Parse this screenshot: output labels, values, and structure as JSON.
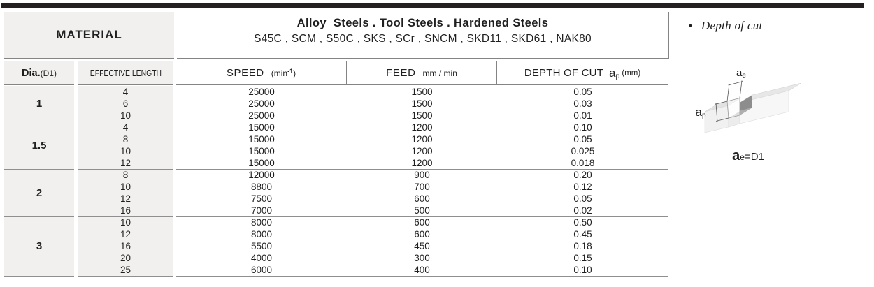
{
  "material": {
    "label": "MATERIAL",
    "title": "Alloy  Steels . Tool Steels . Hardened Steels",
    "grades": "S45C , SCM , S50C , SKS , SCr , SNCM , SKD11 , SKD61 , NAK80"
  },
  "columns": {
    "dia_label": "Dia.",
    "dia_unit": "(D1)",
    "effective_length": "EFFECTIVE LENGTH",
    "speed_label": "SPEED",
    "speed_unit_open": "(min",
    "speed_unit_sup": "-1",
    "speed_unit_close": ")",
    "feed_label": "FEED",
    "feed_unit": "mm / min",
    "depth_label": "DEPTH OF CUT",
    "depth_sym": "a",
    "depth_sym_sub": "p",
    "depth_unit": "(mm)"
  },
  "table": {
    "groups": [
      {
        "dia": "1",
        "rows": [
          [
            "4",
            "25000",
            "1500",
            "0.05"
          ],
          [
            "6",
            "25000",
            "1500",
            "0.03"
          ],
          [
            "10",
            "25000",
            "1500",
            "0.01"
          ]
        ]
      },
      {
        "dia": "1.5",
        "rows": [
          [
            "4",
            "15000",
            "1200",
            "0.10"
          ],
          [
            "8",
            "15000",
            "1200",
            "0.05"
          ],
          [
            "10",
            "15000",
            "1200",
            "0.025"
          ],
          [
            "12",
            "15000",
            "1200",
            "0.018"
          ]
        ]
      },
      {
        "dia": "2",
        "rows": [
          [
            "8",
            "12000",
            "900",
            "0.20"
          ],
          [
            "10",
            "8800",
            "700",
            "0.12"
          ],
          [
            "12",
            "7500",
            "600",
            "0.05"
          ],
          [
            "16",
            "7000",
            "500",
            "0.02"
          ]
        ]
      },
      {
        "dia": "3",
        "rows": [
          [
            "10",
            "8000",
            "600",
            "0.50"
          ],
          [
            "12",
            "8000",
            "600",
            "0.45"
          ],
          [
            "16",
            "5500",
            "450",
            "0.18"
          ],
          [
            "20",
            "4000",
            "300",
            "0.15"
          ],
          [
            "25",
            "6000",
            "400",
            "0.10"
          ]
        ]
      }
    ]
  },
  "side": {
    "bullet": "•",
    "note": "Depth of cut",
    "ae_sym": "a",
    "ae_sub": "e",
    "ap_sym": "a",
    "ap_sub": "p",
    "caption_sym": "a",
    "caption_sub": "e",
    "caption_rest": "=D1"
  }
}
